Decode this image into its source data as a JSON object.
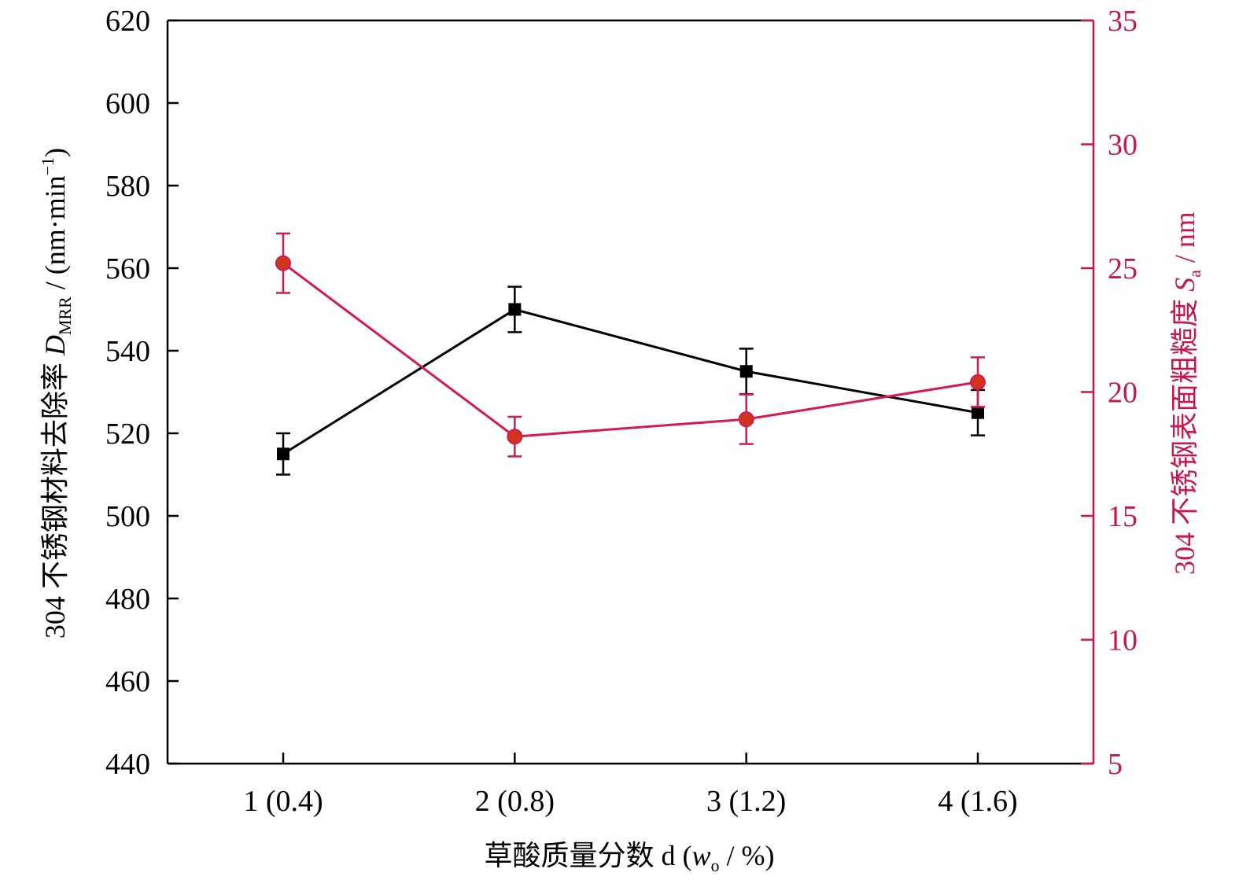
{
  "chart_data": {
    "type": "line",
    "categories": [
      "1 (0.4)",
      "2 (0.8)",
      "3 (1.2)",
      "4 (1.6)"
    ],
    "xlabel": {
      "main": "草酸质量分数 d (",
      "var": "w",
      "sub": "o",
      "tail": " / %)"
    },
    "y_left": {
      "range": [
        440,
        620
      ],
      "ticks": [
        440,
        460,
        480,
        500,
        520,
        540,
        560,
        580,
        600,
        620
      ],
      "label": {
        "prefix": "304 不锈钢材料去除率 ",
        "var": "D",
        "sub": "MRR",
        "tail": " / (nm·min",
        "sup": "−1",
        "close": ")"
      }
    },
    "y_right": {
      "range": [
        5,
        35
      ],
      "ticks": [
        5,
        10,
        15,
        20,
        25,
        30,
        35
      ],
      "label": {
        "prefix": "304 不锈钢表面粗糙度 ",
        "var": "S",
        "sub": "a",
        "tail": " / nm"
      }
    },
    "series": [
      {
        "axis": "left",
        "marker": "square",
        "color": "#000000",
        "values": [
          515,
          550,
          535,
          525
        ],
        "errors": [
          5,
          5.5,
          5.5,
          5.5
        ]
      },
      {
        "axis": "right",
        "marker": "circle",
        "color": "#d6194f",
        "marker_fill": "#d0341c",
        "values": [
          25.2,
          18.2,
          18.9,
          20.4
        ],
        "errors": [
          1.2,
          0.8,
          1.0,
          1.0
        ]
      }
    ],
    "right_axis_color": "#c8174d",
    "grid": false,
    "legend": "none"
  }
}
